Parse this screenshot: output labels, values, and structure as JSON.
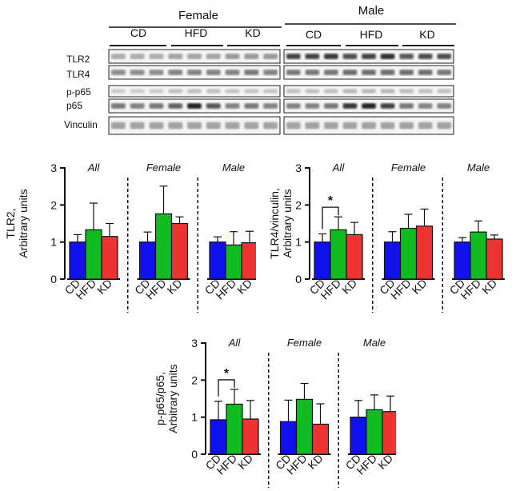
{
  "blot": {
    "sex_groups": [
      "Female",
      "Male"
    ],
    "diet_groups": [
      "CD",
      "HFD",
      "KD"
    ],
    "row_labels": [
      "TLR2",
      "TLR4",
      "p-p65",
      "p65",
      "Vinculin"
    ]
  },
  "chart_data": [
    {
      "type": "bar",
      "ylabel": [
        "TLR2,",
        "Arbitrary units"
      ],
      "ylim": [
        0,
        3
      ],
      "yticks": [
        0,
        1,
        2,
        3
      ],
      "categories": [
        "CD",
        "HFD",
        "KD"
      ],
      "colors": [
        "#1111ee",
        "#11bb22",
        "#ee3333"
      ],
      "groups": [
        {
          "name": "All",
          "values": [
            1.0,
            1.33,
            1.15
          ],
          "errors": [
            0.2,
            0.72,
            0.35
          ]
        },
        {
          "name": "Female",
          "values": [
            1.0,
            1.76,
            1.5
          ],
          "errors": [
            0.27,
            0.75,
            0.18
          ]
        },
        {
          "name": "Male",
          "values": [
            1.0,
            0.92,
            0.98
          ],
          "errors": [
            0.14,
            0.36,
            0.31
          ]
        }
      ],
      "significance": []
    },
    {
      "type": "bar",
      "ylabel": [
        "TLR4/vinculin,",
        "Arbitrary units"
      ],
      "ylim": [
        0,
        3
      ],
      "yticks": [
        0,
        1,
        2,
        3
      ],
      "categories": [
        "CD",
        "HFD",
        "KD"
      ],
      "colors": [
        "#1111ee",
        "#11bb22",
        "#ee3333"
      ],
      "groups": [
        {
          "name": "All",
          "values": [
            1.0,
            1.33,
            1.2
          ],
          "errors": [
            0.22,
            0.35,
            0.33
          ]
        },
        {
          "name": "Female",
          "values": [
            1.0,
            1.37,
            1.43
          ],
          "errors": [
            0.28,
            0.38,
            0.46
          ]
        },
        {
          "name": "Male",
          "values": [
            1.0,
            1.27,
            1.08
          ],
          "errors": [
            0.12,
            0.3,
            0.11
          ]
        }
      ],
      "significance": [
        {
          "group": 0,
          "from": 0,
          "to": 1,
          "label": "*"
        }
      ]
    },
    {
      "type": "bar",
      "ylabel": [
        "p-p65/p65,",
        "Arbitrary units"
      ],
      "ylim": [
        0,
        3
      ],
      "yticks": [
        0,
        1,
        2,
        3
      ],
      "categories": [
        "CD",
        "HFD",
        "KD"
      ],
      "colors": [
        "#1111ee",
        "#11bb22",
        "#ee3333"
      ],
      "groups": [
        {
          "name": "All",
          "values": [
            0.93,
            1.35,
            0.95
          ],
          "errors": [
            0.5,
            0.4,
            0.5
          ]
        },
        {
          "name": "Female",
          "values": [
            0.88,
            1.48,
            0.81
          ],
          "errors": [
            0.58,
            0.43,
            0.55
          ]
        },
        {
          "name": "Male",
          "values": [
            1.0,
            1.2,
            1.15
          ],
          "errors": [
            0.45,
            0.4,
            0.42
          ]
        }
      ],
      "significance": [
        {
          "group": 0,
          "from": 0,
          "to": 1,
          "label": "*"
        }
      ]
    }
  ]
}
